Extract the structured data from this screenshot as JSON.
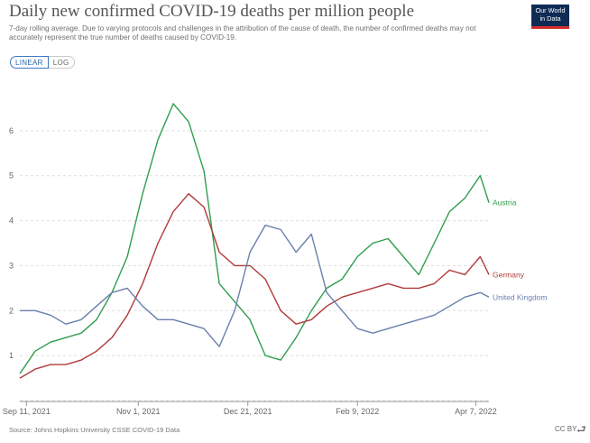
{
  "header": {
    "title": "Daily new confirmed COVID-19 deaths per million people",
    "subtitle": "7-day rolling average. Due to varying protocols and challenges in the attribution of the cause of death, the number of confirmed deaths may not accurately represent the true number of deaths caused by COVID-19."
  },
  "logo": {
    "line1": "Our World",
    "line2": "in Data"
  },
  "controls": {
    "linear_label": "LINEAR",
    "log_label": "LOG"
  },
  "footer": {
    "source": "Source: Johns Hopkins University CSSE COVID-19 Data",
    "license": "CC BY"
  },
  "chart_data": {
    "type": "line",
    "title": "Daily new confirmed COVID-19 deaths per million people",
    "xlabel": "",
    "ylabel": "",
    "ylim": [
      0,
      7
    ],
    "yticks": [
      1,
      2,
      3,
      4,
      5,
      6
    ],
    "grid": true,
    "x": [
      0,
      7,
      14,
      21,
      28,
      35,
      42,
      49,
      56,
      63,
      70,
      77,
      84,
      91,
      98,
      105,
      112,
      119,
      126,
      133,
      140,
      147,
      154,
      161,
      168,
      175,
      182,
      189,
      196,
      203,
      210,
      214
    ],
    "x_unit": "days since Sep 8, 2021",
    "xtick_positions": [
      3,
      54,
      104,
      154,
      208
    ],
    "xtick_labels": [
      "Sep 11, 2021",
      "Nov 1, 2021",
      "Dec 21, 2021",
      "Feb 9, 2022",
      "Apr 7, 2022"
    ],
    "series": [
      {
        "name": "Austria",
        "color": "#2f9e4d",
        "values": [
          0.6,
          1.1,
          1.3,
          1.4,
          1.5,
          1.8,
          2.4,
          3.2,
          4.6,
          5.8,
          6.6,
          6.2,
          5.1,
          2.6,
          2.2,
          1.8,
          1.0,
          0.9,
          1.4,
          2.0,
          2.5,
          2.7,
          3.2,
          3.5,
          3.6,
          3.2,
          2.8,
          3.5,
          4.2,
          4.5,
          5.0,
          4.4
        ]
      },
      {
        "name": "Germany",
        "color": "#b13a3a",
        "values": [
          0.5,
          0.7,
          0.8,
          0.8,
          0.9,
          1.1,
          1.4,
          1.9,
          2.6,
          3.5,
          4.2,
          4.6,
          4.3,
          3.3,
          3.0,
          3.0,
          2.7,
          2.0,
          1.7,
          1.8,
          2.1,
          2.3,
          2.4,
          2.5,
          2.6,
          2.5,
          2.5,
          2.6,
          2.9,
          2.8,
          3.2,
          2.8
        ]
      },
      {
        "name": "United Kingdom",
        "color": "#6a7fae",
        "values": [
          2.0,
          2.0,
          1.9,
          1.7,
          1.8,
          2.1,
          2.4,
          2.5,
          2.1,
          1.8,
          1.8,
          1.7,
          1.6,
          1.2,
          2.0,
          3.3,
          3.9,
          3.8,
          3.3,
          3.7,
          2.4,
          2.0,
          1.6,
          1.5,
          1.6,
          1.7,
          1.8,
          1.9,
          2.1,
          2.3,
          2.4,
          2.3
        ]
      }
    ]
  }
}
